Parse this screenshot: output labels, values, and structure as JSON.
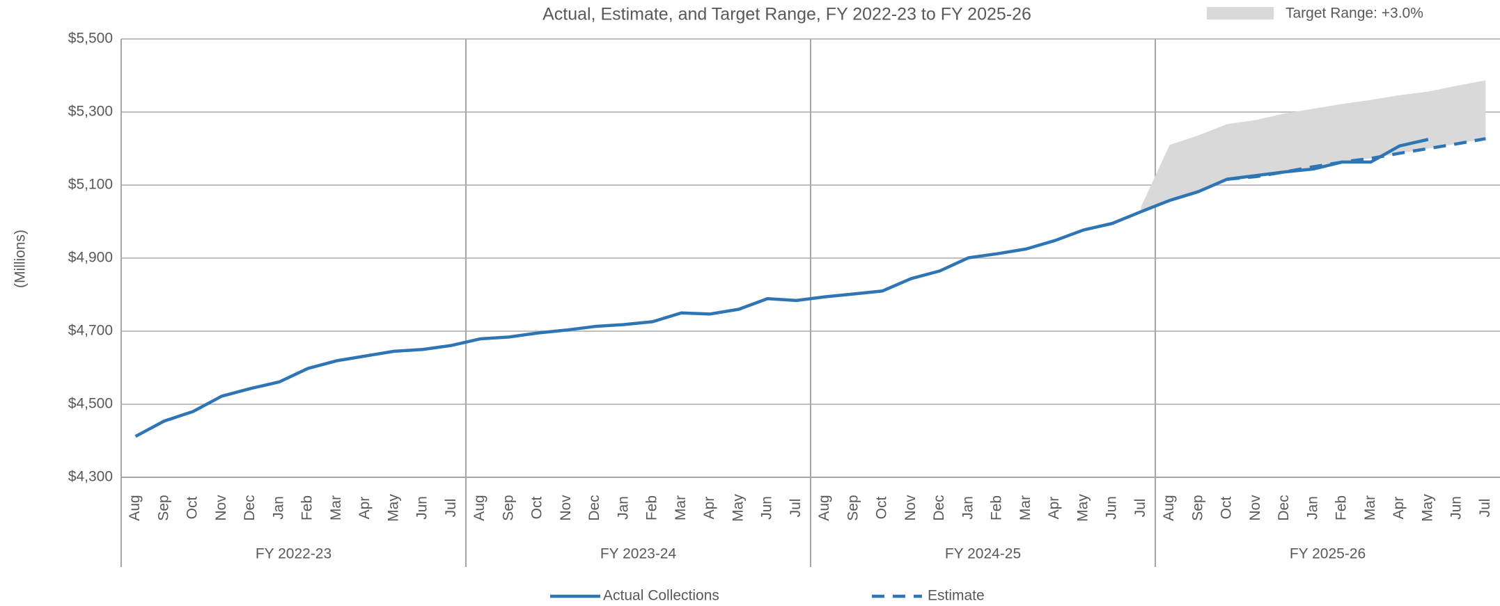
{
  "chart_data": {
    "type": "line",
    "title": "Actual, Estimate, and Target Range, FY 2022-23 to FY 2025-26",
    "y_label": "(Millions)",
    "categories": [
      "Aug",
      "Sep",
      "Oct",
      "Nov",
      "Dec",
      "Jan",
      "Feb",
      "Mar",
      "Apr",
      "May",
      "Jun",
      "Jul",
      "Aug",
      "Sep",
      "Oct",
      "Nov",
      "Dec",
      "Jan",
      "Feb",
      "Mar",
      "Apr",
      "May",
      "Jun",
      "Jul",
      "Aug",
      "Sep",
      "Oct",
      "Nov",
      "Dec",
      "Jan",
      "Feb",
      "Mar",
      "Apr",
      "May",
      "Jun",
      "Jul",
      "Aug",
      "Sep",
      "Oct",
      "Nov",
      "Dec",
      "Jan",
      "Feb",
      "Mar",
      "Apr",
      "May",
      "Jun",
      "Jul"
    ],
    "groups": [
      "FY 2022-23",
      "FY 2023-24",
      "FY 2024-25",
      "FY 2025-26"
    ],
    "ylim": [
      4300,
      5500
    ],
    "yticks": [
      {
        "value": 4300,
        "label": "$4,300"
      },
      {
        "value": 4500,
        "label": "$4,500"
      },
      {
        "value": 4700,
        "label": "$4,700"
      },
      {
        "value": 4900,
        "label": "$4,900"
      },
      {
        "value": 5100,
        "label": "$5,100"
      },
      {
        "value": 5300,
        "label": "$5,300"
      },
      {
        "value": 5500,
        "label": "$5,500"
      }
    ],
    "grid": true,
    "series": [
      {
        "name": "Target Range: +3.0%",
        "type": "range",
        "color": "#d9d9d9",
        "low": [
          null,
          null,
          null,
          null,
          null,
          null,
          null,
          null,
          null,
          null,
          null,
          null,
          null,
          null,
          null,
          null,
          null,
          null,
          null,
          null,
          null,
          null,
          null,
          null,
          null,
          null,
          null,
          null,
          null,
          null,
          null,
          null,
          null,
          null,
          null,
          5027,
          5058,
          5082,
          5116,
          5123,
          5136,
          5150,
          5163,
          5173,
          5187,
          5200,
          5213,
          5227
        ],
        "values": [
          null,
          null,
          null,
          null,
          null,
          null,
          null,
          null,
          null,
          null,
          null,
          null,
          null,
          null,
          null,
          null,
          null,
          null,
          null,
          null,
          null,
          null,
          null,
          null,
          null,
          null,
          null,
          null,
          null,
          null,
          null,
          null,
          null,
          null,
          null,
          5040,
          5210,
          5236,
          5267,
          5278,
          5296,
          5309,
          5322,
          5333,
          5346,
          5356,
          5372,
          5387
        ]
      },
      {
        "name": "Actual Collections",
        "color": "#2e75b6",
        "dash": false,
        "values": [
          4412,
          4454,
          4480,
          4522,
          4543,
          4561,
          4598,
          4619,
          4632,
          4645,
          4650,
          4661,
          4679,
          4684,
          4695,
          4703,
          4713,
          4718,
          4726,
          4750,
          4747,
          4760,
          4789,
          4784,
          4794,
          4802,
          4810,
          4844,
          4865,
          4901,
          4912,
          4925,
          4948,
          4977,
          4995,
          5027,
          5058,
          5082,
          5116,
          5126,
          5136,
          5144,
          5163,
          5163,
          5207,
          5225,
          null,
          null
        ]
      },
      {
        "name": "Estimate",
        "color": "#2e75b6",
        "dash": true,
        "values": [
          null,
          null,
          null,
          null,
          null,
          null,
          null,
          null,
          null,
          null,
          null,
          null,
          null,
          null,
          null,
          null,
          null,
          null,
          null,
          null,
          null,
          null,
          null,
          null,
          null,
          null,
          null,
          null,
          null,
          null,
          null,
          null,
          null,
          null,
          null,
          null,
          null,
          null,
          5116,
          5123,
          5136,
          5150,
          5163,
          5173,
          5187,
          5200,
          5213,
          5227
        ]
      }
    ]
  }
}
